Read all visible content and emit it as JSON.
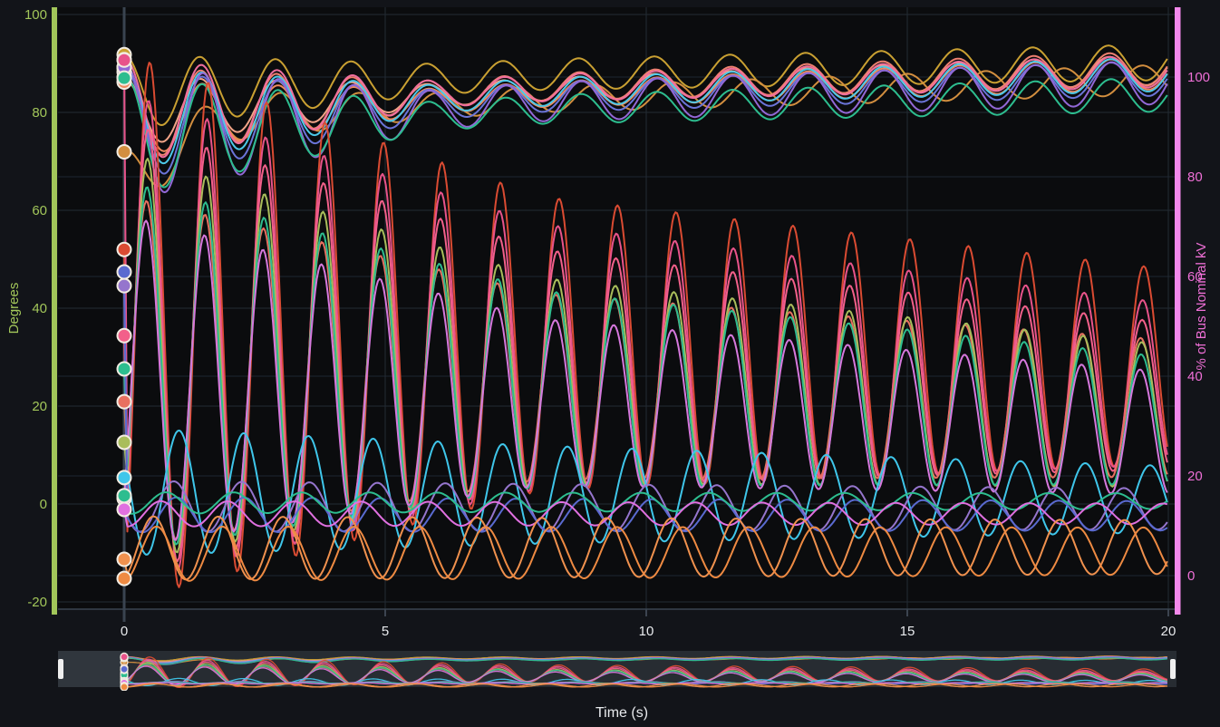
{
  "page": {
    "background": "#121419",
    "plot_background": "#0b0c0e"
  },
  "axes": {
    "left": {
      "title": "Degrees",
      "text_color": "#a2c65a",
      "bar_color": "#a2c65a",
      "ticks": [
        100,
        80,
        60,
        40,
        20,
        0,
        -20
      ]
    },
    "right": {
      "title": "% of Bus Nominal kV",
      "text_color": "#ee6fd6",
      "bar_color": "#f489ec",
      "ticks": [
        100,
        80,
        60,
        40,
        20,
        0
      ]
    },
    "x": {
      "title": "Time (s)",
      "text_color": "#e8eaed",
      "ticks": [
        0,
        5,
        10,
        15,
        20
      ]
    }
  },
  "grid": {
    "h_left_color": "#232b34",
    "h_right_color": "#1e2631",
    "v_color": "#232b34",
    "zero_line_color": "#3a4450",
    "axis_line_color": "#3a4450",
    "tick_stub_color": "#4a5563"
  },
  "navigator": {
    "track_color": "#272c32",
    "empty_slab_color": "#30363d",
    "handle_color": "#efefef",
    "left_handle": "scroll-handle",
    "right_handle": "scroll-handle"
  },
  "chart_data": {
    "type": "line",
    "title": "",
    "xlabel": "Time (s)",
    "x_range": [
      0,
      20
    ],
    "left_axis": {
      "label": "Degrees",
      "visible_range": [
        -21.5,
        101.5
      ],
      "tick_step": 20
    },
    "right_axis": {
      "label": "% of Bus Nominal kV",
      "visible_range": [
        -6.7,
        114.0
      ],
      "tick_step": 20
    },
    "legend": "none",
    "grid": true,
    "model_note": "Series estimated from plot. v(t) = mean(t) + amp(t) * cos(2*pi*(t - first_peak)/period); mean/amp are [time,value] linear keyframes; 'start' is the marked initial value at t=0 (dot marker). axis L = Degrees, axis R = % of Bus Nominal kV.",
    "series": [
      {
        "name": "volt-gold",
        "color": "#c9a032",
        "axis": "R",
        "period": 1.45,
        "first_peak": 0.0,
        "start": 104.5,
        "mean": [
          [
            0,
            97
          ],
          [
            8,
            100.5
          ],
          [
            20,
            103
          ]
        ],
        "amp": [
          [
            0,
            7.5
          ],
          [
            6,
            3
          ],
          [
            20,
            3.6
          ]
        ]
      },
      {
        "name": "volt-amber",
        "color": "#d28e3f",
        "axis": "R",
        "period": 1.5,
        "first_peak": 0.0,
        "start": 85.0,
        "mean": [
          [
            0,
            79
          ],
          [
            2,
            92
          ],
          [
            8,
            95.5
          ],
          [
            20,
            99.5
          ]
        ],
        "amp": [
          [
            0,
            6
          ],
          [
            6,
            2.5
          ],
          [
            20,
            3
          ]
        ]
      },
      {
        "name": "volt-salmon-lt",
        "color": "#f2a488",
        "axis": "R",
        "period": 1.45,
        "first_peak": 0.01,
        "start": 100.0,
        "mean": [
          [
            0,
            93
          ],
          [
            8,
            97.5
          ],
          [
            20,
            101.5
          ]
        ],
        "amp": [
          [
            0,
            7
          ],
          [
            6,
            2.2
          ],
          [
            20,
            3
          ]
        ]
      },
      {
        "name": "volt-coral",
        "color": "#ef8a5e",
        "axis": "R",
        "period": 1.45,
        "first_peak": 0.05,
        "start": 99.0,
        "mean": [
          [
            0,
            91.5
          ],
          [
            8,
            96.5
          ],
          [
            20,
            100.8
          ]
        ],
        "amp": [
          [
            0,
            7.5
          ],
          [
            6,
            2.4
          ],
          [
            20,
            3.2
          ]
        ]
      },
      {
        "name": "volt-salmon",
        "color": "#ef8070",
        "axis": "R",
        "period": 1.45,
        "first_peak": 0.02,
        "start": 102.0,
        "mean": [
          [
            0,
            92.5
          ],
          [
            8,
            98
          ],
          [
            20,
            101.8
          ]
        ],
        "amp": [
          [
            0,
            9.5
          ],
          [
            6,
            2.6
          ],
          [
            20,
            3.4
          ]
        ]
      },
      {
        "name": "volt-pink",
        "color": "#f06e9e",
        "axis": "R",
        "period": 1.45,
        "first_peak": 0.03,
        "start": 103.5,
        "mean": [
          [
            0,
            93
          ],
          [
            8,
            97.8
          ],
          [
            20,
            101.2
          ]
        ],
        "amp": [
          [
            0,
            10.5
          ],
          [
            6,
            2.6
          ],
          [
            20,
            3.2
          ]
        ]
      },
      {
        "name": "volt-cyan",
        "color": "#4cc8e8",
        "axis": "R",
        "period": 1.45,
        "first_peak": 0.04,
        "start": 101.8,
        "mean": [
          [
            0,
            91.5
          ],
          [
            8,
            97
          ],
          [
            20,
            100.6
          ]
        ],
        "amp": [
          [
            0,
            10.3
          ],
          [
            6,
            2.7
          ],
          [
            20,
            3.4
          ]
        ]
      },
      {
        "name": "volt-indigo",
        "color": "#6b74d8",
        "axis": "R",
        "period": 1.45,
        "first_peak": 0.05,
        "start": 101.0,
        "mean": [
          [
            0,
            90
          ],
          [
            8,
            96
          ],
          [
            20,
            99.8
          ]
        ],
        "amp": [
          [
            0,
            11
          ],
          [
            6,
            2.9
          ],
          [
            20,
            3.5
          ]
        ]
      },
      {
        "name": "volt-violet",
        "color": "#9268d6",
        "axis": "R",
        "period": 1.45,
        "first_peak": 0.06,
        "start": 102.0,
        "mean": [
          [
            0,
            88.5
          ],
          [
            8,
            95
          ],
          [
            20,
            99
          ]
        ],
        "amp": [
          [
            0,
            13.5
          ],
          [
            6,
            3.8
          ],
          [
            20,
            4.4
          ]
        ]
      },
      {
        "name": "volt-teal",
        "color": "#2dbd8f",
        "axis": "R",
        "period": 1.45,
        "first_peak": 0.05,
        "start": 99.8,
        "mean": [
          [
            0,
            88
          ],
          [
            8,
            93.5
          ],
          [
            20,
            96.5
          ]
        ],
        "amp": [
          [
            0,
            11.8
          ],
          [
            6,
            2.8
          ],
          [
            20,
            3.4
          ]
        ]
      },
      {
        "name": "angle-red",
        "color": "#da4b32",
        "axis": "L",
        "period": 1.12,
        "first_peak": 0.49,
        "start": 52.0,
        "mean": [
          [
            0,
            36
          ],
          [
            20,
            28
          ]
        ],
        "amp": [
          [
            0,
            56
          ],
          [
            8,
            30
          ],
          [
            20,
            20
          ]
        ]
      },
      {
        "name": "angle-crimson",
        "color": "#e8538a",
        "axis": "L",
        "period": 1.12,
        "first_peak": 0.47,
        "start": 90.7,
        "mean": [
          [
            0,
            34
          ],
          [
            20,
            24.5
          ]
        ],
        "amp": [
          [
            0,
            50
          ],
          [
            8,
            27
          ],
          [
            20,
            16.5
          ]
        ]
      },
      {
        "name": "angle-rose",
        "color": "#f2608a",
        "axis": "L",
        "period": 1.12,
        "first_peak": 0.46,
        "start": 34.4,
        "mean": [
          [
            0,
            32
          ],
          [
            20,
            22
          ]
        ],
        "amp": [
          [
            0,
            46
          ],
          [
            8,
            24
          ],
          [
            20,
            15
          ]
        ]
      },
      {
        "name": "angle-salmon",
        "color": "#e87060",
        "axis": "L",
        "period": 1.12,
        "first_peak": 0.43,
        "start": 20.9,
        "mean": [
          [
            0,
            27
          ],
          [
            20,
            19.5
          ]
        ],
        "amp": [
          [
            0,
            36
          ],
          [
            8,
            19
          ],
          [
            20,
            14
          ]
        ]
      },
      {
        "name": "angle-olive",
        "color": "#a9bd5b",
        "axis": "L",
        "period": 1.12,
        "first_peak": 0.45,
        "start": 12.6,
        "mean": [
          [
            0,
            30
          ],
          [
            20,
            18
          ]
        ],
        "amp": [
          [
            0,
            42
          ],
          [
            8,
            21
          ],
          [
            20,
            14.5
          ]
        ]
      },
      {
        "name": "angle-teal",
        "color": "#2dbd8f",
        "axis": "L",
        "period": 1.12,
        "first_peak": 0.44,
        "start": 27.6,
        "mean": [
          [
            0,
            28
          ],
          [
            20,
            17
          ]
        ],
        "amp": [
          [
            0,
            38
          ],
          [
            8,
            20
          ],
          [
            20,
            13
          ]
        ]
      },
      {
        "name": "angle-orchid",
        "color": "#d678dd",
        "axis": "L",
        "period": 1.12,
        "first_peak": 0.42,
        "start": 1.1,
        "mean": [
          [
            0,
            25
          ],
          [
            20,
            14.5
          ]
        ],
        "amp": [
          [
            0,
            34
          ],
          [
            8,
            17
          ],
          [
            20,
            12.5
          ]
        ]
      },
      {
        "name": "angle-cyan-low",
        "color": "#3fc6ea",
        "axis": "L",
        "period": 1.24,
        "first_peak": 1.05,
        "start": 5.4,
        "mean": [
          [
            0,
            2.5
          ],
          [
            20,
            1
          ]
        ],
        "amp": [
          [
            0,
            13
          ],
          [
            8,
            10
          ],
          [
            20,
            6.8
          ]
        ]
      },
      {
        "name": "angle-violet-low",
        "color": "#9575cd",
        "axis": "L",
        "period": 1.3,
        "first_peak": 0.95,
        "start": 44.6,
        "mean": [
          [
            0,
            -0.5
          ],
          [
            20,
            -1
          ]
        ],
        "amp": [
          [
            0,
            5.2
          ],
          [
            20,
            4.2
          ]
        ]
      },
      {
        "name": "angle-indigo-low",
        "color": "#5a6ad0",
        "axis": "L",
        "period": 1.3,
        "first_peak": 1.0,
        "start": 47.4,
        "mean": [
          [
            0,
            -2.2
          ],
          [
            20,
            -2.4
          ]
        ],
        "amp": [
          [
            0,
            3.6
          ],
          [
            20,
            3
          ]
        ]
      },
      {
        "name": "angle-teal-low",
        "color": "#2dbd8f",
        "axis": "L",
        "period": 1.3,
        "first_peak": 0.8,
        "start": 1.7,
        "mean": [
          [
            0,
            0.2
          ],
          [
            20,
            0.6
          ]
        ],
        "amp": [
          [
            0,
            2.2
          ],
          [
            20,
            1.6
          ]
        ]
      },
      {
        "name": "angle-magenta-low",
        "color": "#e070e0",
        "axis": "L",
        "period": 1.28,
        "first_peak": 0.7,
        "start": -1.1,
        "mean": [
          [
            0,
            -2
          ],
          [
            20,
            -2
          ]
        ],
        "amp": [
          [
            0,
            2.6
          ],
          [
            20,
            2.1
          ]
        ]
      },
      {
        "name": "angle-orange",
        "color": "#f0914e",
        "axis": "L",
        "period": 1.24,
        "first_peak": 0.56,
        "start": -11.3,
        "mean": [
          [
            0,
            -9
          ],
          [
            20,
            -8.8
          ]
        ],
        "amp": [
          [
            0,
            6.5
          ],
          [
            20,
            5.5
          ]
        ]
      },
      {
        "name": "angle-orange-dp",
        "color": "#ee8a42",
        "axis": "L",
        "period": 1.26,
        "first_peak": 0.62,
        "start": -15.2,
        "mean": [
          [
            0,
            -10.2
          ],
          [
            20,
            -9.6
          ]
        ],
        "amp": [
          [
            0,
            5.6
          ],
          [
            20,
            4.8
          ]
        ]
      }
    ]
  }
}
